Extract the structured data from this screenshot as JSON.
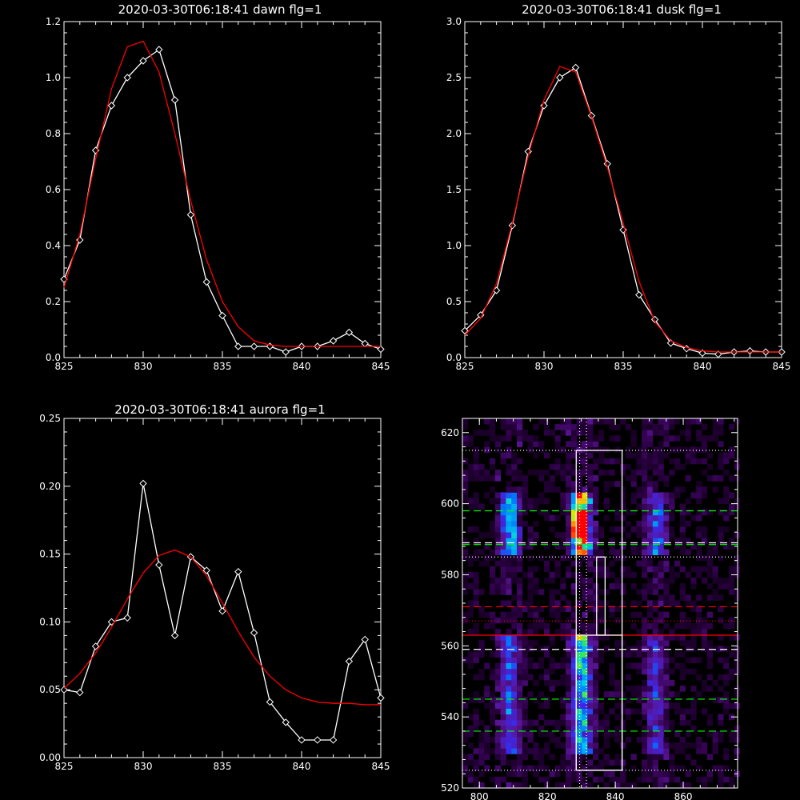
{
  "chart_data": [
    {
      "type": "line",
      "title": "2020-03-30T06:18:41 dawn flg=1",
      "xlim": [
        825,
        845
      ],
      "ylim": [
        0.0,
        1.2
      ],
      "x_ticks": [
        "825",
        "830",
        "835",
        "840",
        "845"
      ],
      "y_ticks": [
        "0.0",
        "0.2",
        "0.4",
        "0.6",
        "0.8",
        "1.0",
        "1.2"
      ],
      "series": [
        {
          "style": "line-with-diamond-markers",
          "color": "#ffffff",
          "x": [
            825,
            826,
            827,
            828,
            829,
            830,
            831,
            832,
            833,
            834,
            835,
            836,
            837,
            838,
            839,
            840,
            841,
            842,
            843,
            844,
            845
          ],
          "y": [
            0.28,
            0.42,
            0.74,
            0.9,
            1.0,
            1.06,
            1.1,
            0.92,
            0.51,
            0.27,
            0.15,
            0.04,
            0.04,
            0.04,
            0.02,
            0.04,
            0.04,
            0.06,
            0.09,
            0.05,
            0.03
          ]
        },
        {
          "style": "line",
          "color": "#ff0000",
          "x": [
            825,
            826,
            827,
            828,
            829,
            830,
            831,
            832,
            833,
            834,
            835,
            836,
            837,
            838,
            839,
            840,
            841,
            842,
            843,
            844,
            845
          ],
          "y": [
            0.25,
            0.44,
            0.71,
            0.96,
            1.11,
            1.13,
            1.02,
            0.8,
            0.56,
            0.35,
            0.2,
            0.11,
            0.06,
            0.045,
            0.04,
            0.04,
            0.04,
            0.04,
            0.04,
            0.04,
            0.04
          ]
        }
      ]
    },
    {
      "type": "line",
      "title": "2020-03-30T06:18:41 dusk flg=1",
      "xlim": [
        825,
        845
      ],
      "ylim": [
        0.0,
        3.0
      ],
      "x_ticks": [
        "825",
        "830",
        "835",
        "840",
        "845"
      ],
      "y_ticks": [
        "0.0",
        "0.5",
        "1.0",
        "1.5",
        "2.0",
        "2.5",
        "3.0"
      ],
      "series": [
        {
          "style": "line-with-diamond-markers",
          "color": "#ffffff",
          "x": [
            825,
            826,
            827,
            828,
            829,
            830,
            831,
            832,
            833,
            834,
            835,
            836,
            837,
            838,
            839,
            840,
            841,
            842,
            843,
            844,
            845
          ],
          "y": [
            0.24,
            0.38,
            0.6,
            1.18,
            1.84,
            2.25,
            2.5,
            2.59,
            2.16,
            1.73,
            1.14,
            0.56,
            0.34,
            0.13,
            0.08,
            0.04,
            0.03,
            0.05,
            0.06,
            0.05,
            0.05
          ]
        },
        {
          "style": "line",
          "color": "#ff0000",
          "x": [
            825,
            826,
            827,
            828,
            829,
            830,
            831,
            832,
            833,
            834,
            835,
            836,
            837,
            838,
            839,
            840,
            841,
            842,
            843,
            844,
            845
          ],
          "y": [
            0.2,
            0.35,
            0.66,
            1.2,
            1.8,
            2.3,
            2.6,
            2.55,
            2.15,
            1.7,
            1.2,
            0.68,
            0.32,
            0.15,
            0.09,
            0.06,
            0.05,
            0.05,
            0.05,
            0.05,
            0.05
          ]
        }
      ]
    },
    {
      "type": "line",
      "title": "2020-03-30T06:18:41 aurora flg=1",
      "xlim": [
        825,
        845
      ],
      "ylim": [
        0.0,
        0.25
      ],
      "x_ticks": [
        "825",
        "830",
        "835",
        "840",
        "845"
      ],
      "y_ticks": [
        "0.00",
        "0.05",
        "0.10",
        "0.15",
        "0.20",
        "0.25"
      ],
      "series": [
        {
          "style": "line-with-diamond-markers",
          "color": "#ffffff",
          "x": [
            825,
            826,
            827,
            828,
            829,
            830,
            831,
            832,
            833,
            834,
            835,
            836,
            837,
            838,
            839,
            840,
            841,
            842,
            843,
            844,
            845
          ],
          "y": [
            0.05,
            0.048,
            0.082,
            0.1,
            0.103,
            0.202,
            0.142,
            0.09,
            0.148,
            0.138,
            0.108,
            0.137,
            0.092,
            0.041,
            0.026,
            0.013,
            0.013,
            0.013,
            0.071,
            0.087,
            0.044
          ]
        },
        {
          "style": "line",
          "color": "#ff0000",
          "x": [
            825,
            826,
            827,
            828,
            829,
            830,
            831,
            832,
            833,
            834,
            835,
            836,
            837,
            838,
            839,
            840,
            841,
            842,
            843,
            844,
            845
          ],
          "y": [
            0.051,
            0.062,
            0.077,
            0.096,
            0.117,
            0.136,
            0.149,
            0.153,
            0.148,
            0.134,
            0.114,
            0.093,
            0.074,
            0.06,
            0.05,
            0.044,
            0.041,
            0.04,
            0.04,
            0.039,
            0.039
          ]
        }
      ]
    },
    {
      "type": "heatmap",
      "title": "",
      "xlim": [
        795,
        876
      ],
      "ylim": [
        520,
        624
      ],
      "x_ticks": [
        "800",
        "820",
        "840",
        "860"
      ],
      "y_ticks": [
        "520",
        "540",
        "560",
        "580",
        "600",
        "620"
      ],
      "colormap": "rainbow",
      "bright_columns_x": [
        809,
        830,
        852
      ],
      "bright_rows_y": [
        [
          587,
          600
        ],
        [
          530,
          563
        ]
      ],
      "boxes": [
        {
          "x": [
            828.5,
            842
          ],
          "y": [
            525,
            615
          ],
          "color": "#ffffff"
        },
        {
          "x": [
            828.5,
            842
          ],
          "y": [
            525,
            563
          ],
          "color": "#ffffff"
        },
        {
          "x": [
            834.5,
            837
          ],
          "y": [
            563,
            585
          ],
          "color": "#ffffff"
        }
      ],
      "horizontal_lines": [
        {
          "y": 615,
          "color": "#ffffff",
          "style": "dotted"
        },
        {
          "y": 598,
          "color": "#00ff00",
          "style": "dashed"
        },
        {
          "y": 589,
          "color": "#ffffff",
          "style": "dashed"
        },
        {
          "y": 588.5,
          "color": "#00ff00",
          "style": "dashed"
        },
        {
          "y": 585,
          "color": "#ffffff",
          "style": "dotted"
        },
        {
          "y": 571,
          "color": "#ff0000",
          "style": "dashed"
        },
        {
          "y": 567,
          "color": "#ff0000",
          "style": "dotted"
        },
        {
          "y": 563,
          "color": "#ff0000",
          "style": "solid"
        },
        {
          "y": 559,
          "color": "#ffffff",
          "style": "dashed"
        },
        {
          "y": 545,
          "color": "#00ff00",
          "style": "dashed"
        },
        {
          "y": 536,
          "color": "#00ff00",
          "style": "dashed"
        },
        {
          "y": 525,
          "color": "#ffffff",
          "style": "dotted"
        }
      ],
      "vertical_lines": [
        {
          "x": 829.5,
          "color": "#ffffff",
          "style": "dotted"
        },
        {
          "x": 831.5,
          "color": "#ffffff",
          "style": "dotted"
        }
      ]
    }
  ]
}
